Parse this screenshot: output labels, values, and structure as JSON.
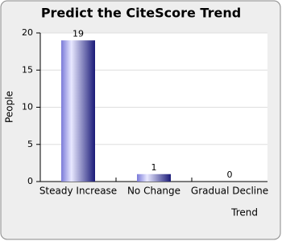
{
  "chart_data": {
    "type": "bar",
    "title": "Predict the CiteScore Trend",
    "x_label": "Trend",
    "y_label": "People",
    "categories": [
      "Steady Increase",
      "No Change",
      "Gradual Decline"
    ],
    "values": [
      19,
      1,
      0
    ],
    "color": "#1a1a78",
    "ylim": [
      0,
      20
    ],
    "yticks": [
      0,
      5,
      10,
      15,
      20
    ],
    "grid": true
  }
}
